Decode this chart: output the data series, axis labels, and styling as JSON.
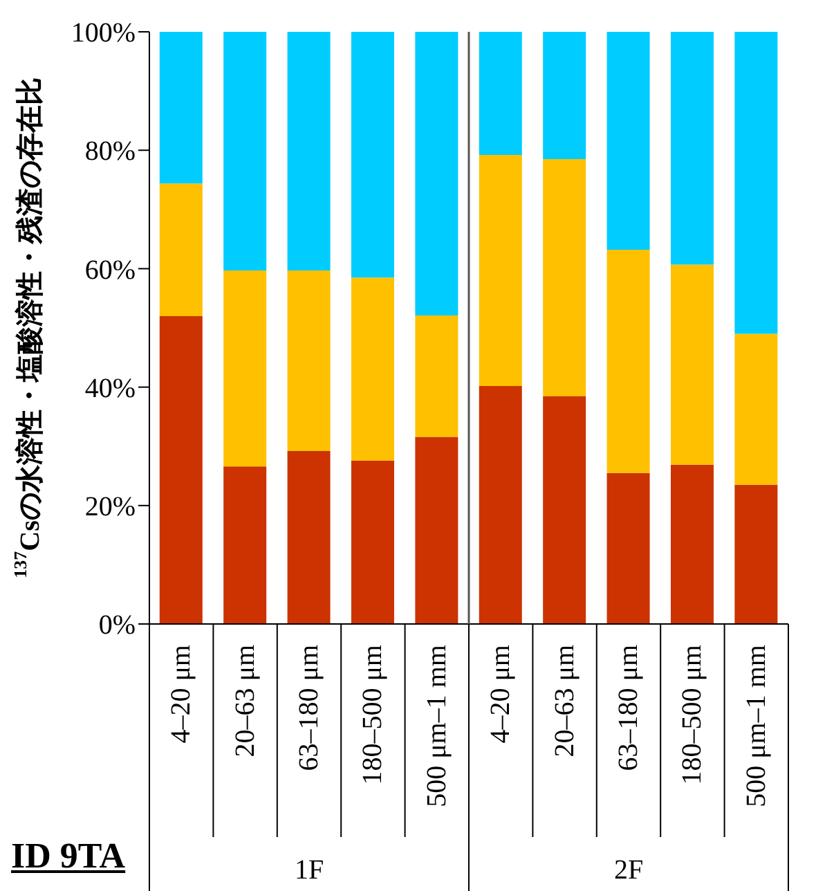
{
  "chart_data": {
    "type": "bar",
    "stacked": true,
    "ylabel": "$^{137}$Csの水溶性・塩酸溶性・残渣の存在比",
    "categories": [
      "4–20 μm",
      "20–63 μm",
      "63–180 μm",
      "180–500 μm",
      "500 μm–1 mm",
      "4–20 μm",
      "20–63 μm",
      "63–180 μm",
      "180–500 μm",
      "500 μm–1 mm"
    ],
    "series": [
      {
        "color": "#cc3300",
        "values": [
          52.0,
          26.6,
          29.2,
          27.6,
          31.6,
          40.2,
          38.5,
          25.5,
          26.9,
          23.5
        ]
      },
      {
        "color": "#ffc000",
        "values": [
          22.4,
          33.1,
          30.5,
          30.9,
          20.5,
          39.0,
          40.0,
          37.7,
          33.8,
          25.5
        ]
      },
      {
        "color": "#00ccff",
        "values": [
          25.6,
          40.3,
          40.3,
          41.5,
          47.9,
          20.8,
          21.5,
          36.8,
          39.3,
          51.0
        ]
      }
    ],
    "ylim": [
      0,
      100
    ],
    "yticks": [
      {
        "value": 0,
        "label": "0%"
      },
      {
        "value": 20,
        "label": "20%"
      },
      {
        "value": 40,
        "label": "40%"
      },
      {
        "value": 60,
        "label": "60%"
      },
      {
        "value": 80,
        "label": "80%"
      },
      {
        "value": 100,
        "label": "100%"
      }
    ],
    "annotations": [
      "1F",
      "2F",
      "ID 9TA"
    ],
    "grid": false,
    "legend": false
  }
}
